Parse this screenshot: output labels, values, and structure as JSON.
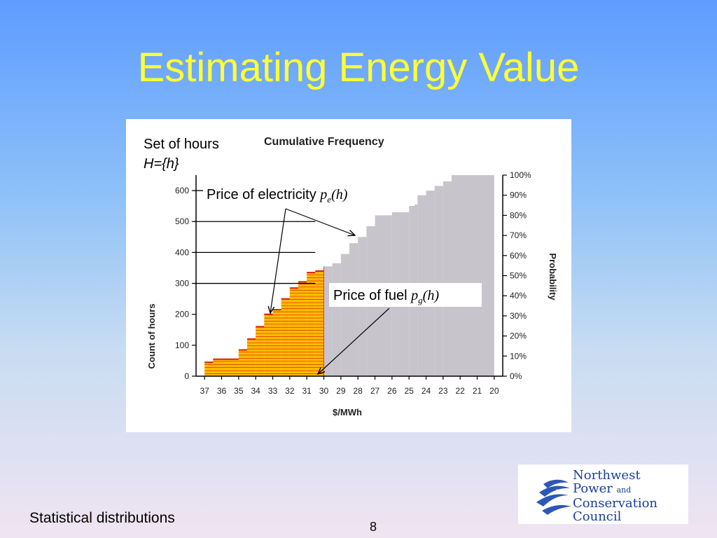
{
  "slide": {
    "title": "Estimating Energy Value",
    "footer": "Statistical distributions",
    "page_number": "8"
  },
  "logo": {
    "line1": "Northwest",
    "line2a": "Power",
    "line2b": "and",
    "line3": "Conservation",
    "line4": "Council"
  },
  "annotations": {
    "set_of_hours": "Set of hours",
    "set_formula": "H={h}",
    "electricity_label": "Price of electricity",
    "electricity_var": "p",
    "electricity_sub": "e",
    "electricity_arg": "(h)",
    "fuel_label": "Price of fuel",
    "fuel_var": "p",
    "fuel_sub": "g",
    "fuel_arg": "(h)"
  },
  "chart_data": {
    "type": "area",
    "title": "Cumulative Frequency",
    "xlabel": "$/MWh",
    "ylabel": "Count of hours",
    "y2label": "Probability",
    "x_ticks": [
      "37",
      "36",
      "35",
      "34",
      "33",
      "32",
      "31",
      "30",
      "29",
      "28",
      "27",
      "26",
      "25",
      "24",
      "23",
      "22",
      "21",
      "20"
    ],
    "y_ticks": [
      "0",
      "100",
      "200",
      "300",
      "400",
      "500",
      "600"
    ],
    "y_range": [
      0,
      650
    ],
    "y2_ticks": [
      "0%",
      "10%",
      "20%",
      "30%",
      "40%",
      "50%",
      "60%",
      "70%",
      "80%",
      "90%",
      "100%"
    ],
    "y2_range": [
      0,
      1.0
    ],
    "gridlines_y": [
      300,
      400,
      500,
      600
    ],
    "steps": [
      {
        "x": 37.0,
        "y": 45
      },
      {
        "x": 36.5,
        "y": 55
      },
      {
        "x": 35.0,
        "y": 85
      },
      {
        "x": 34.5,
        "y": 120
      },
      {
        "x": 34.0,
        "y": 160
      },
      {
        "x": 33.5,
        "y": 200
      },
      {
        "x": 33.0,
        "y": 215
      },
      {
        "x": 32.5,
        "y": 250
      },
      {
        "x": 32.0,
        "y": 285
      },
      {
        "x": 31.5,
        "y": 305
      },
      {
        "x": 31.0,
        "y": 335
      },
      {
        "x": 30.5,
        "y": 340
      },
      {
        "x": 30.0,
        "y": 355
      },
      {
        "x": 29.5,
        "y": 365
      },
      {
        "x": 29.0,
        "y": 395
      },
      {
        "x": 28.5,
        "y": 430
      },
      {
        "x": 28.0,
        "y": 450
      },
      {
        "x": 27.5,
        "y": 485
      },
      {
        "x": 27.0,
        "y": 520
      },
      {
        "x": 26.0,
        "y": 530
      },
      {
        "x": 25.0,
        "y": 555
      },
      {
        "x": 24.5,
        "y": 585
      },
      {
        "x": 24.0,
        "y": 600
      },
      {
        "x": 23.5,
        "y": 615
      },
      {
        "x": 23.0,
        "y": 630
      },
      {
        "x": 22.5,
        "y": 650
      },
      {
        "x": 20.0,
        "y": 650
      }
    ],
    "highlight_from": 37,
    "highlight_to": 30,
    "colors": {
      "highlight": "#ffbb00",
      "highlight_lines": "#dd2200",
      "remainder": "#c8c4cc"
    }
  }
}
